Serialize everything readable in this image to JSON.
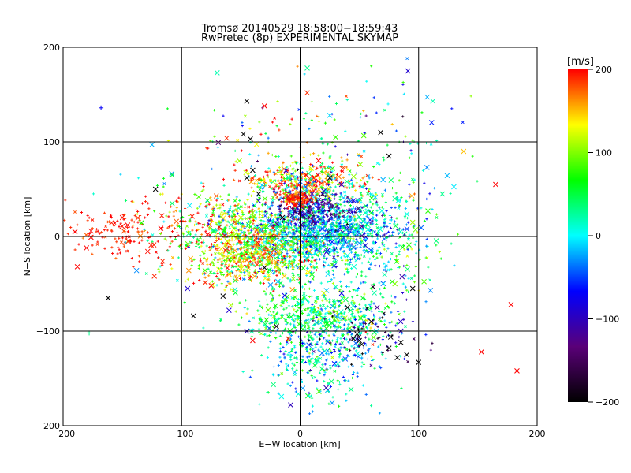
{
  "chart_data": {
    "type": "scatter",
    "title": "Tromsø 20140529 18:58:00−18:59:43",
    "subtitle": "RwPretec (8p) EXPERIMENTAL SKYMAP",
    "xlabel": "E−W location [km]",
    "ylabel": "N−S location [km]",
    "xlim": [
      -200,
      200
    ],
    "ylim": [
      -200,
      200
    ],
    "xticks": [
      -200,
      -100,
      0,
      100,
      200
    ],
    "yticks": [
      -200,
      -100,
      0,
      100,
      200
    ],
    "x_tick_labels": [
      "−200",
      "−100",
      "0",
      "100",
      "200"
    ],
    "y_tick_labels": [
      "−200",
      "−100",
      "0",
      "100",
      "200"
    ],
    "grid": true,
    "colorbar": {
      "label": "[m/s]",
      "range": [
        -200,
        200
      ],
      "ticks": [
        200,
        100,
        0,
        -100,
        -200
      ],
      "tick_labels": [
        "200",
        "100",
        "0",
        "−100",
        "−200"
      ],
      "colors": [
        "#000000",
        "#5a0078",
        "#0000ff",
        "#00ffff",
        "#00ff00",
        "#ffff00",
        "#ff0000"
      ]
    },
    "points": [
      {
        "x": -190,
        "y": 5,
        "v": 200,
        "m": "x"
      },
      {
        "x": -188,
        "y": -32,
        "v": 200,
        "m": "x"
      },
      {
        "x": -178,
        "y": -102,
        "v": 30,
        "m": "+"
      },
      {
        "x": -168,
        "y": 136,
        "v": -70,
        "m": "+"
      },
      {
        "x": -162,
        "y": -65,
        "v": -200,
        "m": "x"
      },
      {
        "x": -150,
        "y": 20,
        "v": 195,
        "m": "x"
      },
      {
        "x": -145,
        "y": -5,
        "v": 190,
        "m": "x"
      },
      {
        "x": -138,
        "y": -36,
        "v": -30,
        "m": "x"
      },
      {
        "x": -125,
        "y": 97,
        "v": -20,
        "m": "x"
      },
      {
        "x": -123,
        "y": -42,
        "v": 190,
        "m": "x"
      },
      {
        "x": -122,
        "y": 50,
        "v": -200,
        "m": "x"
      },
      {
        "x": -116,
        "y": -26,
        "v": 190,
        "m": "x"
      },
      {
        "x": -108,
        "y": 65,
        "v": 50,
        "m": "x"
      },
      {
        "x": -108,
        "y": 35,
        "v": 40,
        "m": "x"
      },
      {
        "x": -95,
        "y": -55,
        "v": -90,
        "m": "x"
      },
      {
        "x": -90,
        "y": -84,
        "v": -200,
        "m": "x"
      },
      {
        "x": -70,
        "y": 173,
        "v": 20,
        "m": "x"
      },
      {
        "x": -65,
        "y": -63,
        "v": -200,
        "m": "x"
      },
      {
        "x": -45,
        "y": 143,
        "v": -200,
        "m": "x"
      },
      {
        "x": -30,
        "y": 138,
        "v": 200,
        "m": "x"
      },
      {
        "x": -62,
        "y": 104,
        "v": 190,
        "m": "x"
      },
      {
        "x": -42,
        "y": 103,
        "v": -200,
        "m": "x"
      },
      {
        "x": 6,
        "y": 178,
        "v": 30,
        "m": "x"
      },
      {
        "x": 25,
        "y": 128,
        "v": -10,
        "m": "x"
      },
      {
        "x": 68,
        "y": 110,
        "v": -200,
        "m": "x"
      },
      {
        "x": 91,
        "y": 175,
        "v": -90,
        "m": "x"
      },
      {
        "x": 112,
        "y": 143,
        "v": 20,
        "m": "x"
      },
      {
        "x": 138,
        "y": 90,
        "v": 150,
        "m": "x"
      },
      {
        "x": 165,
        "y": 55,
        "v": 200,
        "m": "x"
      },
      {
        "x": 107,
        "y": 73,
        "v": -30,
        "m": "x"
      },
      {
        "x": 178,
        "y": -72,
        "v": 200,
        "m": "x"
      },
      {
        "x": 183,
        "y": -142,
        "v": 200,
        "m": "x"
      },
      {
        "x": 153,
        "y": -122,
        "v": 200,
        "m": "x"
      },
      {
        "x": 100,
        "y": -133,
        "v": -200,
        "m": "x"
      },
      {
        "x": 110,
        "y": -57,
        "v": -30,
        "m": "x"
      },
      {
        "x": -8,
        "y": -178,
        "v": -100,
        "m": "x"
      },
      {
        "x": 22,
        "y": -160,
        "v": -110,
        "m": "x"
      },
      {
        "x": -40,
        "y": 70,
        "v": -200,
        "m": "x"
      },
      {
        "x": -35,
        "y": 45,
        "v": -200,
        "m": "x"
      },
      {
        "x": -45,
        "y": 62,
        "v": -200,
        "m": "x"
      },
      {
        "x": -15,
        "y": 20,
        "v": -200,
        "m": "x"
      },
      {
        "x": -30,
        "y": -33,
        "v": -200,
        "m": "x"
      },
      {
        "x": 5,
        "y": 65,
        "v": 200,
        "m": "x"
      },
      {
        "x": -8,
        "y": 40,
        "v": 200,
        "m": "x"
      },
      {
        "x": -5,
        "y": 33,
        "v": 200,
        "m": "x"
      },
      {
        "x": 15,
        "y": 65,
        "v": 200,
        "m": "x"
      },
      {
        "x": 20,
        "y": 48,
        "v": -90,
        "m": "x"
      },
      {
        "x": 10,
        "y": 45,
        "v": -100,
        "m": "x"
      },
      {
        "x": 35,
        "y": 55,
        "v": -100,
        "m": "x"
      },
      {
        "x": 25,
        "y": 62,
        "v": -200,
        "m": "x"
      },
      {
        "x": -60,
        "y": -40,
        "v": 150,
        "m": "x"
      },
      {
        "x": -55,
        "y": -15,
        "v": 160,
        "m": "x"
      },
      {
        "x": -45,
        "y": -25,
        "v": 170,
        "m": "x"
      },
      {
        "x": -25,
        "y": -20,
        "v": 190,
        "m": "x"
      },
      {
        "x": -50,
        "y": 20,
        "v": 120,
        "m": "x"
      },
      {
        "x": -40,
        "y": 25,
        "v": 100,
        "m": "x"
      },
      {
        "x": 45,
        "y": -108,
        "v": -200,
        "m": "x"
      },
      {
        "x": 50,
        "y": -110,
        "v": -200,
        "m": "x"
      },
      {
        "x": 48,
        "y": -103,
        "v": -200,
        "m": "x"
      },
      {
        "x": 52,
        "y": -114,
        "v": -200,
        "m": "x"
      },
      {
        "x": 75,
        "y": -118,
        "v": -200,
        "m": "x"
      },
      {
        "x": 82,
        "y": -128,
        "v": -200,
        "m": "x"
      },
      {
        "x": 85,
        "y": -112,
        "v": -200,
        "m": "x"
      },
      {
        "x": 90,
        "y": -125,
        "v": -200,
        "m": "x"
      },
      {
        "x": 60,
        "y": -90,
        "v": -200,
        "m": "x"
      },
      {
        "x": 85,
        "y": -100,
        "v": -100,
        "m": "x"
      },
      {
        "x": 65,
        "y": -75,
        "v": -120,
        "m": "x"
      },
      {
        "x": 40,
        "y": -75,
        "v": -200,
        "m": "x"
      },
      {
        "x": 35,
        "y": -60,
        "v": -80,
        "m": "x"
      },
      {
        "x": 80,
        "y": -50,
        "v": 100,
        "m": "x"
      },
      {
        "x": 95,
        "y": -55,
        "v": -200,
        "m": "x"
      },
      {
        "x": -10,
        "y": -108,
        "v": 200,
        "m": "x"
      },
      {
        "x": -40,
        "y": -110,
        "v": 200,
        "m": "x"
      },
      {
        "x": -45,
        "y": -100,
        "v": -100,
        "m": "x"
      },
      {
        "x": -75,
        "y": -52,
        "v": 200,
        "m": "x"
      },
      {
        "x": -20,
        "y": -95,
        "v": -200,
        "m": "x"
      },
      {
        "x": -60,
        "y": -78,
        "v": -90,
        "m": "x"
      },
      {
        "x": 20,
        "y": -60,
        "v": 120,
        "m": "x"
      },
      {
        "x": 10,
        "y": -40,
        "v": 60,
        "m": "x"
      },
      {
        "x": 40,
        "y": -20,
        "v": 10,
        "m": "x"
      },
      {
        "x": 55,
        "y": 25,
        "v": 20,
        "m": "x"
      },
      {
        "x": 80,
        "y": 40,
        "v": 30,
        "m": "x"
      },
      {
        "x": 95,
        "y": 15,
        "v": 110,
        "m": "x"
      },
      {
        "x": 120,
        "y": 45,
        "v": 30,
        "m": "x"
      },
      {
        "x": 70,
        "y": 60,
        "v": -20,
        "m": "x"
      },
      {
        "x": 75,
        "y": 85,
        "v": -200,
        "m": "x"
      },
      {
        "x": 30,
        "y": 105,
        "v": 80,
        "m": "x"
      },
      {
        "x": 60,
        "y": 25,
        "v": 60,
        "m": "x"
      }
    ],
    "clusters": [
      {
        "cx": 5,
        "cy": 0,
        "sx": 34,
        "sy": 22,
        "n": 900,
        "v": 10,
        "sv": 45
      },
      {
        "cx": 28,
        "cy": 5,
        "sx": 26,
        "sy": 14,
        "n": 420,
        "v": -20,
        "sv": 45
      },
      {
        "cx": 10,
        "cy": 30,
        "sx": 16,
        "sy": 10,
        "n": 280,
        "v": -110,
        "sv": 40
      },
      {
        "cx": -2,
        "cy": 40,
        "sx": 7,
        "sy": 4,
        "n": 110,
        "v": 190,
        "sv": 15
      },
      {
        "cx": 8,
        "cy": 62,
        "sx": 26,
        "sy": 11,
        "n": 220,
        "v": 170,
        "sv": 40
      },
      {
        "cx": -5,
        "cy": 62,
        "sx": 18,
        "sy": 10,
        "n": 120,
        "v": 60,
        "sv": 80
      },
      {
        "cx": -40,
        "cy": -22,
        "sx": 26,
        "sy": 14,
        "n": 560,
        "v": 130,
        "sv": 60
      },
      {
        "cx": -52,
        "cy": 15,
        "sx": 22,
        "sy": 14,
        "n": 230,
        "v": 100,
        "sv": 70
      },
      {
        "cx": -150,
        "cy": 5,
        "sx": 28,
        "sy": 16,
        "n": 150,
        "v": 195,
        "sv": 12
      },
      {
        "cx": -90,
        "cy": 5,
        "sx": 28,
        "sy": 30,
        "n": 190,
        "v": 120,
        "sv": 80
      },
      {
        "cx": 15,
        "cy": -80,
        "sx": 30,
        "sy": 14,
        "n": 420,
        "v": 50,
        "sv": 40
      },
      {
        "cx": 18,
        "cy": -115,
        "sx": 24,
        "sy": 20,
        "n": 280,
        "v": 0,
        "sv": 45
      },
      {
        "cx": 55,
        "cy": -105,
        "sx": 20,
        "sy": 14,
        "n": 130,
        "v": -80,
        "sv": 100
      },
      {
        "cx": 50,
        "cy": 35,
        "sx": 35,
        "sy": 30,
        "n": 230,
        "v": 30,
        "sv": 55
      },
      {
        "cx": 80,
        "cy": -20,
        "sx": 22,
        "sy": 30,
        "n": 130,
        "v": 30,
        "sv": 60
      },
      {
        "cx": -30,
        "cy": 100,
        "sx": 40,
        "sy": 30,
        "n": 60,
        "v": 80,
        "sv": 120
      },
      {
        "cx": 60,
        "cy": 120,
        "sx": 40,
        "sy": 30,
        "n": 50,
        "v": 30,
        "sv": 80
      },
      {
        "cx": 10,
        "cy": -150,
        "sx": 22,
        "sy": 20,
        "n": 90,
        "v": 10,
        "sv": 40
      }
    ]
  }
}
